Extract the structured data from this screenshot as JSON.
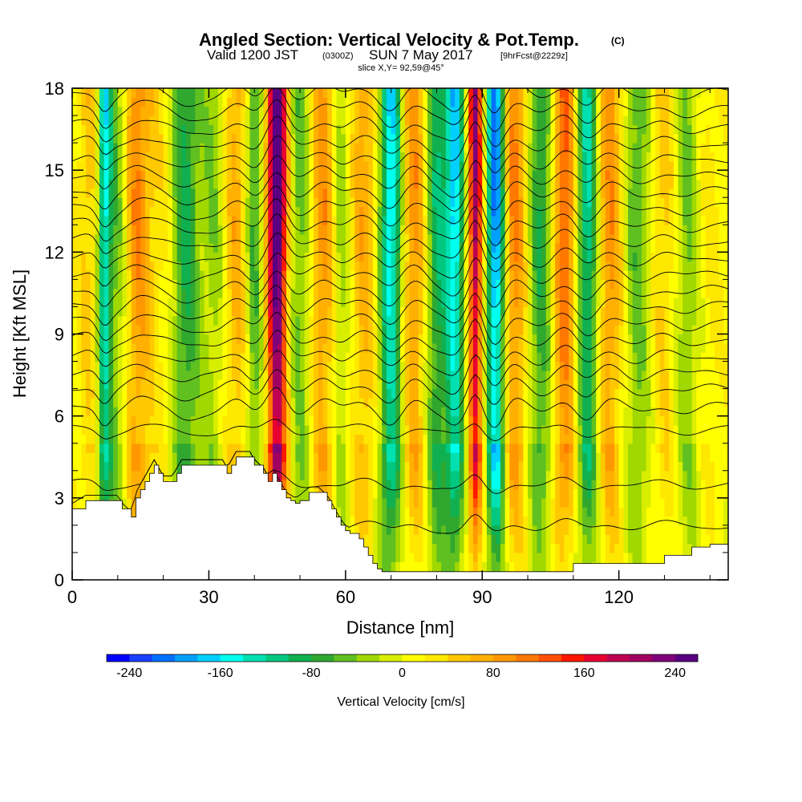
{
  "title": {
    "main": "Angled Section: Vertical Velocity & Pot.Temp.",
    "main_suffix": "(C)",
    "valid_prefix": "Valid 1200 JST",
    "valid_utc": "(0300Z)",
    "valid_date": "SUN 7 May 2017",
    "forecast": "[9hrFcst@2229z]",
    "slice": "slice X,Y= 92,59@45°"
  },
  "chart_data": {
    "type": "heatmap",
    "title": "Angled Section: Vertical Velocity & Pot.Temp.",
    "xlabel": "Distance [nm]",
    "ylabel": "Height [Kft MSL]",
    "xlim": [
      0,
      144
    ],
    "ylim": [
      0,
      18
    ],
    "x_ticks": [
      0,
      30,
      60,
      90,
      120
    ],
    "y_ticks": [
      0,
      3,
      6,
      9,
      12,
      15,
      18
    ],
    "x_tick_labels": [
      "0",
      "30",
      "60",
      "90",
      "120"
    ],
    "y_tick_labels": [
      "0",
      "3",
      "6",
      "9",
      "12",
      "15",
      "18"
    ],
    "terrain_profile": {
      "x": [
        0,
        3,
        10,
        11,
        13,
        14,
        15,
        16,
        17,
        18,
        19,
        20,
        22,
        23,
        24,
        25,
        33,
        34,
        35,
        36,
        37,
        38,
        39,
        40,
        42,
        43,
        44,
        45,
        46,
        47,
        48,
        49,
        50,
        52,
        54,
        56,
        57,
        58,
        59,
        60,
        61,
        62,
        63,
        64,
        65,
        66,
        67,
        68,
        69,
        70,
        73,
        76,
        79,
        82,
        85,
        88,
        91,
        94,
        97,
        100,
        103,
        106,
        108,
        109,
        110,
        114,
        118,
        122,
        126,
        130,
        134,
        136,
        138,
        140,
        142,
        144
      ],
      "y": [
        2.6,
        2.9,
        2.9,
        2.6,
        2.3,
        3.0,
        3.3,
        3.6,
        3.9,
        4.2,
        3.9,
        3.6,
        3.6,
        3.9,
        4.2,
        4.2,
        4.2,
        3.9,
        4.2,
        4.5,
        4.5,
        4.5,
        4.5,
        4.2,
        3.9,
        3.6,
        3.9,
        3.6,
        3.3,
        3.0,
        2.9,
        2.8,
        2.9,
        3.2,
        3.2,
        2.9,
        2.6,
        2.3,
        2.0,
        1.8,
        1.7,
        1.7,
        1.5,
        1.2,
        0.9,
        0.6,
        0.4,
        0.3,
        0.3,
        0.3,
        0.3,
        0.3,
        0.3,
        0.3,
        0.3,
        0.3,
        0.3,
        0.3,
        0.3,
        0.3,
        0.3,
        0.3,
        0.3,
        0.3,
        0.6,
        0.6,
        0.6,
        0.6,
        0.6,
        0.9,
        0.9,
        1.2,
        1.2,
        1.3,
        1.3,
        1.3
      ]
    },
    "velocity_bands": [
      {
        "x": 4,
        "w": 3,
        "v": 40
      },
      {
        "x": 7,
        "w": 1.5,
        "v": -140
      },
      {
        "x": 10,
        "w": 3,
        "v": -60
      },
      {
        "x": 14,
        "w": 3,
        "v": 90
      },
      {
        "x": 19,
        "w": 3,
        "v": 20
      },
      {
        "x": 25,
        "w": 3,
        "v": -90
      },
      {
        "x": 31,
        "w": 2.5,
        "v": -40
      },
      {
        "x": 36,
        "w": 2.5,
        "v": 60
      },
      {
        "x": 40,
        "w": 2,
        "v": -70
      },
      {
        "x": 45,
        "w": 2.2,
        "v": 250
      },
      {
        "x": 50,
        "w": 3,
        "v": -60
      },
      {
        "x": 55,
        "w": 3,
        "v": 80
      },
      {
        "x": 59,
        "w": 2,
        "v": -50
      },
      {
        "x": 64,
        "w": 3,
        "v": 60
      },
      {
        "x": 70,
        "w": 2.5,
        "v": -160
      },
      {
        "x": 75,
        "w": 3,
        "v": 80
      },
      {
        "x": 80,
        "w": 2.5,
        "v": -100
      },
      {
        "x": 84,
        "w": 2,
        "v": -160
      },
      {
        "x": 88.5,
        "w": 1.5,
        "v": 190
      },
      {
        "x": 93,
        "w": 2,
        "v": -210
      },
      {
        "x": 97,
        "w": 3,
        "v": 90
      },
      {
        "x": 103,
        "w": 3,
        "v": -90
      },
      {
        "x": 108,
        "w": 3,
        "v": 110
      },
      {
        "x": 113,
        "w": 2.5,
        "v": -130
      },
      {
        "x": 118,
        "w": 3,
        "v": 80
      },
      {
        "x": 124,
        "w": 3,
        "v": -60
      },
      {
        "x": 130,
        "w": 3,
        "v": 40
      },
      {
        "x": 135,
        "w": 3,
        "v": -50
      },
      {
        "x": 140,
        "w": 3,
        "v": 20
      }
    ],
    "theta_contour_base_heights": [
      2.0,
      3.5,
      5.5,
      6.3,
      7.0,
      7.6,
      8.2,
      8.8,
      9.4,
      10.0,
      10.6,
      11.2,
      11.8,
      12.4,
      13.0,
      13.6,
      14.2,
      14.8,
      15.4,
      16.0,
      16.6,
      17.2,
      17.8
    ],
    "colorbar": {
      "title": "Vertical Velocity [cm/s]",
      "range": [
        -260,
        260
      ],
      "tick_values": [
        -240,
        -160,
        -80,
        0,
        80,
        160,
        240
      ],
      "tick_labels": [
        "-240",
        "-160",
        "-80",
        "0",
        "80",
        "160",
        "240"
      ],
      "colors": [
        "#0000ff",
        "#1a40ff",
        "#0070ff",
        "#00a0ff",
        "#00d0ff",
        "#00ffee",
        "#00e0b0",
        "#00c880",
        "#10b050",
        "#30a830",
        "#60c020",
        "#a0d800",
        "#d8ee00",
        "#ffff00",
        "#ffe800",
        "#ffc800",
        "#ffb000",
        "#ff9800",
        "#ff7800",
        "#ff5000",
        "#ff1800",
        "#e80030",
        "#c00050",
        "#a00060",
        "#80007a",
        "#5a0080"
      ]
    }
  }
}
